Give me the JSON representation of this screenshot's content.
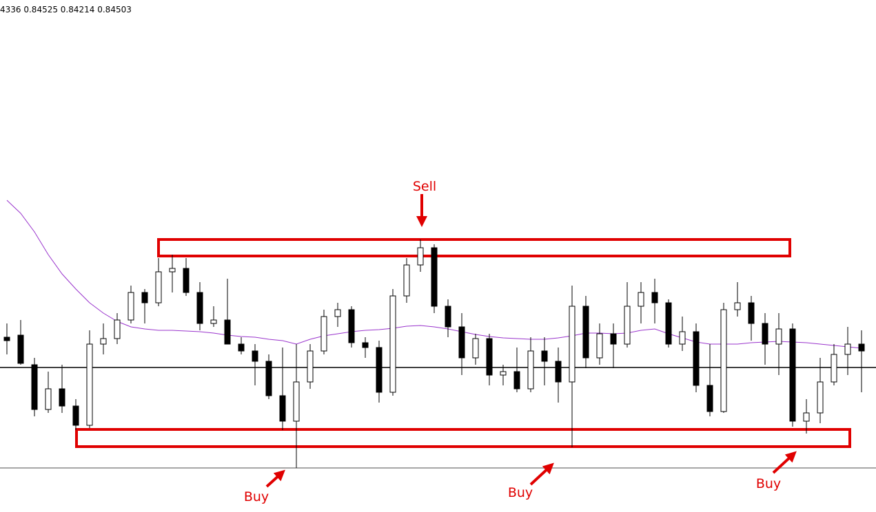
{
  "chart_data": {
    "type": "candlestick",
    "header": "4336 0.84525 0.84214 0.84503",
    "ylim": [
      0.8479,
      0.85534
    ],
    "up_color": "#ffffff",
    "down_color": "#000000",
    "open": [
      0.85044,
      0.85047,
      0.85004,
      0.84939,
      0.84969,
      0.84944,
      0.84916,
      0.85034,
      0.85042,
      0.85069,
      0.85109,
      0.85094,
      0.85139,
      0.85144,
      0.85109,
      0.85064,
      0.85069,
      0.85034,
      0.85024,
      0.85009,
      0.84959,
      0.84922,
      0.84979,
      0.85024,
      0.85074,
      0.85084,
      0.85036,
      0.85029,
      0.84964,
      0.85104,
      0.85149,
      0.85174,
      0.85089,
      0.85059,
      0.85014,
      0.85042,
      0.84989,
      0.84994,
      0.84969,
      0.85024,
      0.85009,
      0.84979,
      0.85089,
      0.85014,
      0.85049,
      0.85034,
      0.85089,
      0.85109,
      0.85094,
      0.85034,
      0.85052,
      0.84974,
      0.84936,
      0.85084,
      0.85094,
      0.85064,
      0.85034,
      0.85056,
      0.84922,
      0.84934,
      0.84979,
      0.85019,
      0.85034
    ],
    "high": [
      0.85064,
      0.85069,
      0.85014,
      0.84994,
      0.85004,
      0.84954,
      0.85054,
      0.85064,
      0.85079,
      0.85119,
      0.85114,
      0.85159,
      0.85164,
      0.85159,
      0.85124,
      0.85089,
      0.85129,
      0.85044,
      0.85034,
      0.85019,
      0.85029,
      0.85034,
      0.85034,
      0.85084,
      0.85094,
      0.85089,
      0.85044,
      0.85039,
      0.85114,
      0.85159,
      0.85186,
      0.85179,
      0.85099,
      0.85079,
      0.85049,
      0.85049,
      0.85004,
      0.85029,
      0.85044,
      0.85044,
      0.85029,
      0.85119,
      0.85104,
      0.85064,
      0.85064,
      0.85124,
      0.85124,
      0.85129,
      0.85099,
      0.85074,
      0.85064,
      0.85034,
      0.85094,
      0.85124,
      0.85104,
      0.85079,
      0.85079,
      0.85064,
      0.84954,
      0.85014,
      0.85034,
      0.85059,
      0.85054
    ],
    "low": [
      0.85019,
      0.85004,
      0.84929,
      0.84934,
      0.84934,
      0.84909,
      0.84912,
      0.85019,
      0.85034,
      0.85064,
      0.85064,
      0.85089,
      0.85109,
      0.85104,
      0.85054,
      0.85059,
      0.85039,
      0.85019,
      0.84974,
      0.84954,
      0.84909,
      0.84854,
      0.84969,
      0.85019,
      0.85059,
      0.85029,
      0.85014,
      0.84949,
      0.84959,
      0.85094,
      0.85139,
      0.85079,
      0.85044,
      0.84989,
      0.85004,
      0.84974,
      0.84974,
      0.84964,
      0.84964,
      0.84974,
      0.84949,
      0.84884,
      0.84999,
      0.85004,
      0.84999,
      0.85029,
      0.85064,
      0.85064,
      0.85029,
      0.85024,
      0.84964,
      0.84929,
      0.84934,
      0.85074,
      0.85039,
      0.85004,
      0.84989,
      0.84914,
      0.84904,
      0.84919,
      0.84974,
      0.84989,
      0.84964
    ],
    "close": [
      0.85039,
      0.85006,
      0.84939,
      0.84969,
      0.84944,
      0.84916,
      0.85034,
      0.85042,
      0.85069,
      0.85109,
      0.85094,
      0.85139,
      0.85144,
      0.85109,
      0.85064,
      0.85069,
      0.85034,
      0.85024,
      0.85009,
      0.84959,
      0.84922,
      0.84979,
      0.85024,
      0.85074,
      0.85084,
      0.85036,
      0.85029,
      0.84964,
      0.85104,
      0.85149,
      0.85174,
      0.85089,
      0.85059,
      0.85014,
      0.85042,
      0.84989,
      0.84994,
      0.84969,
      0.85024,
      0.85009,
      0.84979,
      0.85089,
      0.85014,
      0.85049,
      0.85034,
      0.85089,
      0.85109,
      0.85094,
      0.85034,
      0.85052,
      0.84974,
      0.84936,
      0.85084,
      0.85094,
      0.85064,
      0.85034,
      0.85056,
      0.84922,
      0.84934,
      0.84979,
      0.85019,
      0.85034,
      0.85024
    ],
    "ma": {
      "color": "#9933cc",
      "values": [
        0.85243,
        0.85224,
        0.85197,
        0.85164,
        0.85136,
        0.85114,
        0.85094,
        0.85079,
        0.85067,
        0.85059,
        0.85056,
        0.85054,
        0.85054,
        0.85053,
        0.85052,
        0.8505,
        0.85047,
        0.85045,
        0.85044,
        0.85041,
        0.85039,
        0.85034,
        0.85041,
        0.85046,
        0.85049,
        0.85052,
        0.85054,
        0.85055,
        0.85057,
        0.8506,
        0.85061,
        0.85059,
        0.85056,
        0.85052,
        0.85048,
        0.85045,
        0.85043,
        0.85042,
        0.85041,
        0.85041,
        0.85043,
        0.85046,
        0.8505,
        0.8505,
        0.85049,
        0.8505,
        0.85054,
        0.85056,
        0.85049,
        0.85043,
        0.85037,
        0.85034,
        0.85034,
        0.85034,
        0.85036,
        0.85037,
        0.85038,
        0.85037,
        0.85036,
        0.85034,
        0.85032,
        0.8503,
        0.85028
      ]
    },
    "levels": [
      {
        "value": 0.85,
        "color": "#000000"
      },
      {
        "value": 0.84854,
        "color": "#888888"
      }
    ],
    "zones": [
      {
        "low": 0.85162,
        "high": 0.85186,
        "color": "#e00000"
      },
      {
        "low": 0.84885,
        "high": 0.8491,
        "color": "#e00000"
      }
    ],
    "annotations": [
      "Sell",
      "Buy",
      "Buy",
      "Buy"
    ]
  }
}
